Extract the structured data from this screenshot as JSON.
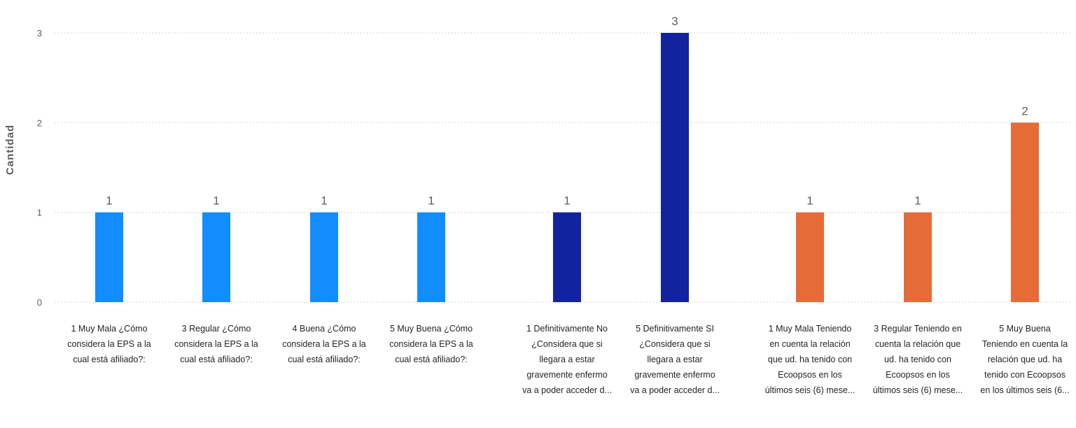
{
  "chart_data": {
    "type": "bar",
    "ylabel": "Cantidad",
    "xlabel": "",
    "ylim": [
      0,
      3
    ],
    "yticks": [
      0,
      1,
      2,
      3
    ],
    "grid": true,
    "categories": [
      [
        "1 Muy Mala ¿Cómo",
        "considera la EPS a la",
        "cual está afiliado?:"
      ],
      [
        "3 Regular ¿Cómo",
        "considera la EPS a la",
        "cual está afiliado?:"
      ],
      [
        "4 Buena ¿Cómo",
        "considera la EPS a la",
        "cual está afiliado?:"
      ],
      [
        "5 Muy Buena ¿Cómo",
        "considera la EPS a la",
        "cual está afiliado?:"
      ],
      [
        "1 Definitivamente No",
        "¿Considera que si",
        "llegara a estar",
        "gravemente enfermo",
        "va a poder acceder d..."
      ],
      [
        "5 Definitivamente SI",
        "¿Considera que si",
        "llegara a estar",
        "gravemente enfermo",
        "va a poder acceder d..."
      ],
      [
        "1 Muy Mala Teniendo",
        "en cuenta la relación",
        "que ud. ha tenido con",
        "Ecoopsos en los",
        "últimos seis (6) mese..."
      ],
      [
        "3 Regular Teniendo en",
        "cuenta la relación que",
        "ud. ha tenido con",
        "Ecoopsos en los",
        "últimos seis (6) mese..."
      ],
      [
        "5 Muy Buena",
        "Teniendo en cuenta la",
        "relación que ud. ha",
        "tenido con Ecoopsos",
        "en los últimos seis (6..."
      ]
    ],
    "values": [
      1,
      1,
      1,
      1,
      1,
      3,
      1,
      1,
      2
    ],
    "data_labels": [
      "1",
      "1",
      "1",
      "1",
      "1",
      "3",
      "1",
      "1",
      "2"
    ],
    "colors": [
      "#118DFF",
      "#118DFF",
      "#118DFF",
      "#118DFF",
      "#12239E",
      "#12239E",
      "#E66C37",
      "#E66C37",
      "#E66C37"
    ],
    "axis_color": "#605E5C",
    "grid_color": "#C8C6C4",
    "label_color": "#252423"
  }
}
